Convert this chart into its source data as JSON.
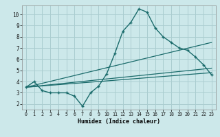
{
  "xlabel": "Humidex (Indice chaleur)",
  "bg_color": "#cce8ea",
  "grid_color": "#aacdd0",
  "line_color": "#1a6b6b",
  "xlim": [
    -0.5,
    23.5
  ],
  "ylim": [
    1.5,
    10.8
  ],
  "xticks": [
    0,
    1,
    2,
    3,
    4,
    5,
    6,
    7,
    8,
    9,
    10,
    11,
    12,
    13,
    14,
    15,
    16,
    17,
    18,
    19,
    20,
    21,
    22,
    23
  ],
  "yticks": [
    2,
    3,
    4,
    5,
    6,
    7,
    8,
    9,
    10
  ],
  "series1_x": [
    0,
    1,
    2,
    3,
    4,
    5,
    6,
    7,
    8,
    9,
    10,
    11,
    12,
    13,
    14,
    15,
    16,
    17,
    18,
    19,
    20,
    21,
    22,
    23
  ],
  "series1_y": [
    3.5,
    4.0,
    3.2,
    3.0,
    3.0,
    3.0,
    2.7,
    1.8,
    3.0,
    3.6,
    4.7,
    6.5,
    8.5,
    9.3,
    10.5,
    10.2,
    8.8,
    8.0,
    7.5,
    7.0,
    6.8,
    6.2,
    5.5,
    4.6
  ],
  "series2_x": [
    0,
    23
  ],
  "series2_y": [
    3.5,
    4.8
  ],
  "series3_x": [
    0,
    23
  ],
  "series3_y": [
    3.5,
    5.2
  ],
  "series4_x": [
    0,
    23
  ],
  "series4_y": [
    3.5,
    7.5
  ]
}
